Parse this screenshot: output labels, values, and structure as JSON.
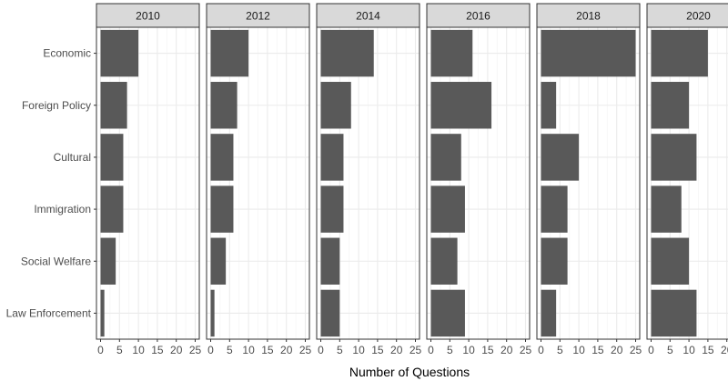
{
  "chart_data": {
    "type": "bar",
    "orientation": "horizontal",
    "facet_by": "year",
    "xlabel": "Number of Questions",
    "ylabel": "",
    "xlim": [
      0,
      25
    ],
    "x_ticks": [
      0,
      5,
      10,
      15,
      20,
      25
    ],
    "grid": true,
    "categories": [
      "Economic",
      "Foreign Policy",
      "Cultural",
      "Immigration",
      "Social Welfare",
      "Law Enforcement"
    ],
    "panels": [
      {
        "label": "2010",
        "values": [
          10,
          7,
          6,
          6,
          4,
          1
        ]
      },
      {
        "label": "2012",
        "values": [
          10,
          7,
          6,
          6,
          4,
          1
        ]
      },
      {
        "label": "2014",
        "values": [
          14,
          8,
          6,
          6,
          5,
          5
        ]
      },
      {
        "label": "2016",
        "values": [
          11,
          16,
          8,
          9,
          7,
          9
        ]
      },
      {
        "label": "2018",
        "values": [
          25,
          4,
          10,
          7,
          7,
          4
        ]
      },
      {
        "label": "2020",
        "values": [
          15,
          10,
          12,
          8,
          10,
          12
        ]
      }
    ],
    "colors": {
      "bar": "#595959",
      "strip_fill": "#d9d9d9",
      "panel_border": "#333333",
      "grid_major": "#ebebeb",
      "grid_minor": "#f5f5f5"
    }
  }
}
